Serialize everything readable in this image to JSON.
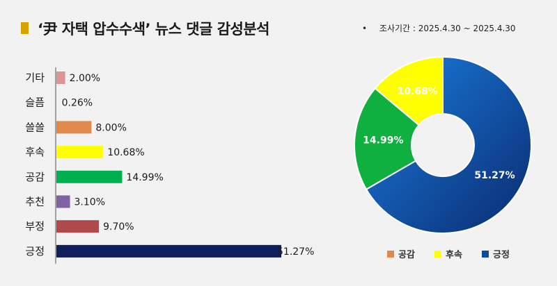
{
  "header": {
    "title": "‘尹 자택 압수수색’ 뉴스 댓글 감성분석",
    "period_bullet": "•",
    "period": "조사기간 : 2025.4.30 ~ 2025.4.30"
  },
  "chart_data": [
    {
      "type": "bar",
      "orientation": "horizontal",
      "categories": [
        "기타",
        "슬픔",
        "쓸쓸",
        "후속",
        "공감",
        "추천",
        "부정",
        "긍정"
      ],
      "values": [
        2.0,
        0.26,
        8.0,
        10.68,
        14.99,
        3.1,
        9.7,
        51.27
      ],
      "value_labels": [
        "2.00%",
        "0.26%",
        "8.00%",
        "10.68%",
        "14.99%",
        "3.10%",
        "9.70%",
        "51.27%"
      ],
      "colors": [
        "#d99694",
        "#f2f2f2",
        "#e0894a",
        "#ffff00",
        "#00b050",
        "#8064a2",
        "#b04a4a",
        "#0f1e5c"
      ],
      "grid": false
    },
    {
      "type": "pie",
      "donut": true,
      "slices": [
        {
          "name": "긍정",
          "value": 51.27,
          "label": "51.27%",
          "color": "#0a5fc0"
        },
        {
          "name": "공감",
          "value": 14.99,
          "label": "14.99%",
          "color": "#10b040"
        },
        {
          "name": "후속",
          "value": 10.68,
          "label": "10.68%",
          "color": "#ffff00"
        }
      ],
      "legend": {
        "position": "bottom",
        "items": [
          {
            "name": "공감",
            "color": "#e0894a"
          },
          {
            "name": "후속",
            "color": "#ffff00"
          },
          {
            "name": "긍정",
            "color": "#0a4aa0"
          }
        ]
      }
    }
  ]
}
